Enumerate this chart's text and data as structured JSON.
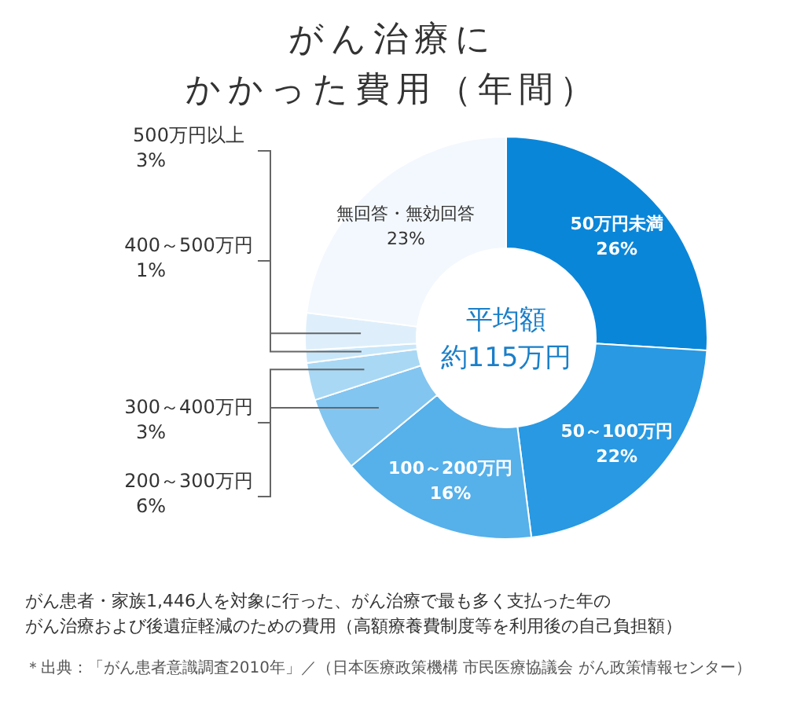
{
  "chart_data": {
    "type": "donut",
    "title": "がん治療に",
    "subtitle": "かかった費用（年間）",
    "categories": [
      "50万円未満",
      "50～100万円",
      "100～200万円",
      "200～300万円",
      "300～400万円",
      "400～500万円",
      "500万円以上",
      "無回答・無効回答"
    ],
    "values": [
      26,
      22,
      16,
      6,
      3,
      1,
      3,
      23
    ],
    "value_labels": [
      "26%",
      "22%",
      "16%",
      "6%",
      "3%",
      "1%",
      "3%",
      "23%"
    ],
    "colors": [
      "#0a86d9",
      "#2899e2",
      "#56b0ea",
      "#82c5f0",
      "#a9d8f5",
      "#c8e6f9",
      "#deeffb",
      "#f3f8fe"
    ],
    "legend": false,
    "annotations": [
      "平均額",
      "約115万円",
      "がん患者・家族1,446人を対象に行った、がん治療で最も多く支払った年の",
      "がん治療および後遺症軽減のための費用（高額療養費制度等を利用後の自己負担額）",
      "＊出典：「がん患者意識調査2010年」／（日本医療政策機構 市民医療協議会 がん政策情報センター）"
    ]
  }
}
